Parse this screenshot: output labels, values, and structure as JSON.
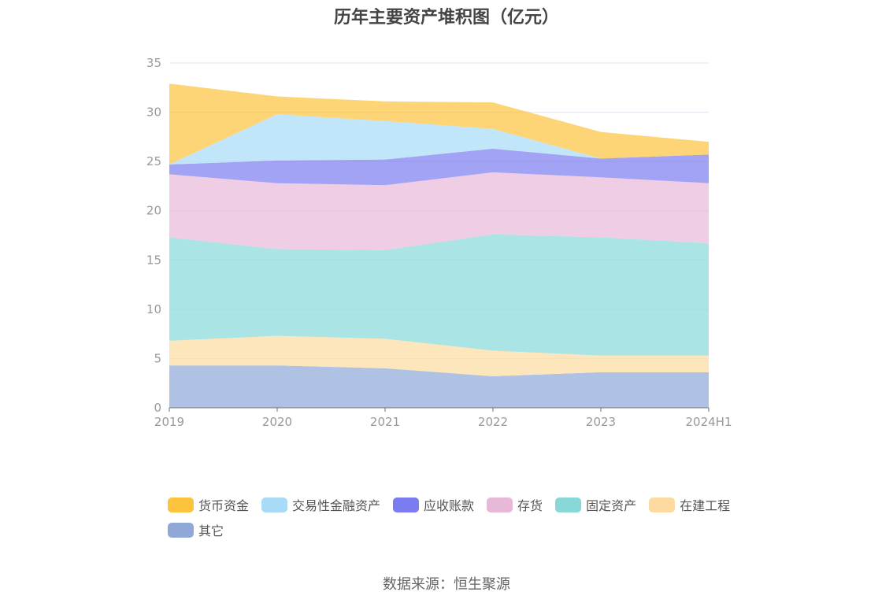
{
  "title": "历年主要资产堆积图（亿元）",
  "source": "数据来源：恒生聚源",
  "chart_data": {
    "type": "area",
    "stacked": true,
    "title": "历年主要资产堆积图（亿元）",
    "categories": [
      "2019",
      "2020",
      "2021",
      "2022",
      "2023",
      "2024H1"
    ],
    "ylim": [
      0,
      35
    ],
    "yticks": [
      0,
      5,
      10,
      15,
      20,
      25,
      30,
      35
    ],
    "grid": true,
    "legend_position": "bottom",
    "series": [
      {
        "name": "其它",
        "color": "#8fa8d8",
        "values": [
          4.3,
          4.3,
          4.0,
          3.2,
          3.6,
          3.6
        ]
      },
      {
        "name": "在建工程",
        "color": "#fddba0",
        "values": [
          2.5,
          3.0,
          3.0,
          2.6,
          1.7,
          1.7
        ]
      },
      {
        "name": "固定资产",
        "color": "#88d8d8",
        "values": [
          10.5,
          8.8,
          9.0,
          11.8,
          12.0,
          11.4
        ]
      },
      {
        "name": "存货",
        "color": "#e8b8d8",
        "values": [
          6.4,
          6.7,
          6.6,
          6.3,
          6.1,
          6.1
        ]
      },
      {
        "name": "应收账款",
        "color": "#7b7cf0",
        "values": [
          1.0,
          2.3,
          2.6,
          2.4,
          1.9,
          2.9
        ]
      },
      {
        "name": "交易性金融资产",
        "color": "#a8dcf6",
        "values": [
          0.0,
          4.7,
          3.9,
          2.0,
          0.0,
          0.0
        ]
      },
      {
        "name": "货币资金",
        "color": "#fcc33c",
        "values": [
          8.2,
          1.8,
          2.0,
          2.7,
          2.7,
          1.3
        ]
      }
    ]
  },
  "legend_order": [
    "货币资金",
    "交易性金融资产",
    "应收账款",
    "存货",
    "固定资产",
    "在建工程",
    "其它"
  ]
}
